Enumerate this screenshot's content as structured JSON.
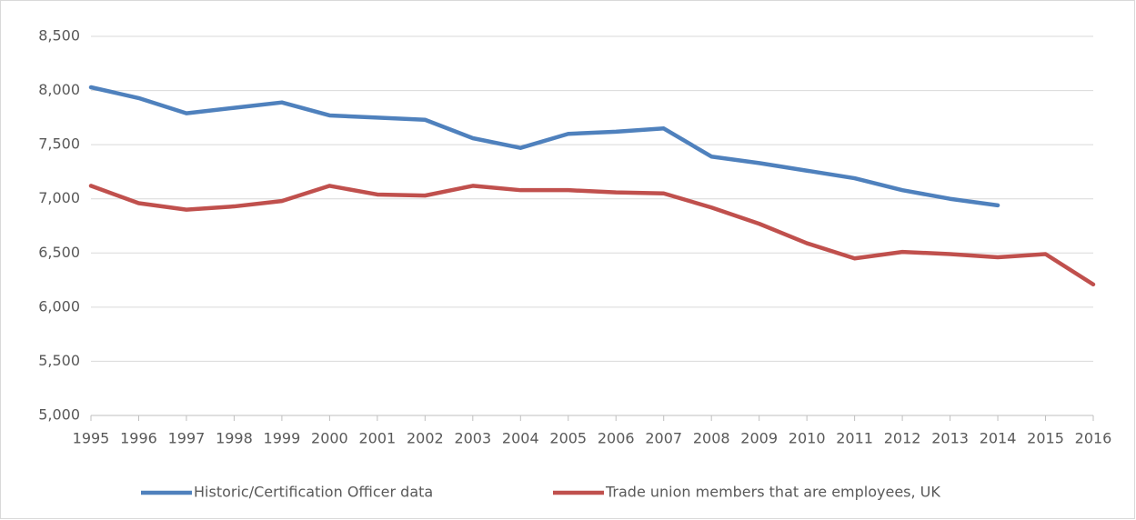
{
  "chart_data": {
    "type": "line",
    "categories": [
      "1995",
      "1996",
      "1997",
      "1998",
      "1999",
      "2000",
      "2001",
      "2002",
      "2003",
      "2004",
      "2005",
      "2006",
      "2007",
      "2008",
      "2009",
      "2010",
      "2011",
      "2012",
      "2013",
      "2014",
      "2015",
      "2016"
    ],
    "series": [
      {
        "name": "Historic/Certification Officer data",
        "color": "#4f81bd",
        "values": [
          8030,
          7930,
          7790,
          7840,
          7890,
          7770,
          7750,
          7730,
          7560,
          7470,
          7600,
          7620,
          7650,
          7390,
          7330,
          7260,
          7190,
          7080,
          7000,
          6940,
          null,
          null
        ]
      },
      {
        "name": "Trade union members that are employees, UK",
        "color": "#c0504d",
        "values": [
          7120,
          6960,
          6900,
          6930,
          6980,
          7120,
          7040,
          7030,
          7120,
          7080,
          7080,
          7060,
          7050,
          6920,
          6770,
          6590,
          6450,
          6510,
          6490,
          6460,
          6490,
          6210
        ]
      }
    ],
    "ylim": [
      5000,
      8500
    ],
    "yticks": [
      {
        "value": 5000,
        "label": "5,000"
      },
      {
        "value": 5500,
        "label": "5,500"
      },
      {
        "value": 6000,
        "label": "6,000"
      },
      {
        "value": 6500,
        "label": "6,500"
      },
      {
        "value": 7000,
        "label": "7,000"
      },
      {
        "value": 7500,
        "label": "7,500"
      },
      {
        "value": 8000,
        "label": "8,000"
      },
      {
        "value": 8500,
        "label": "8,500"
      }
    ],
    "grid": true,
    "legend": "bottom"
  }
}
